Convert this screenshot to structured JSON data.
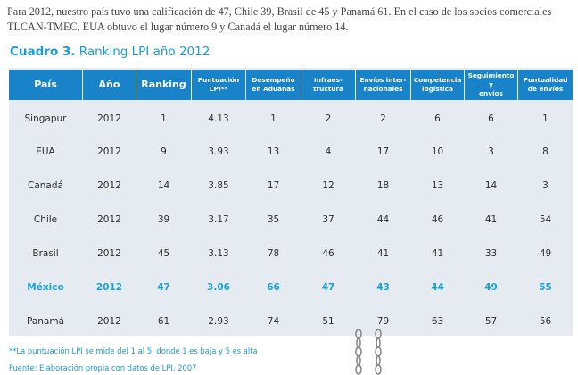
{
  "intro_text": "Para 2012, nuestro país tuvo una calificación de 47, Chile 39, Brasil de 45 y Panamá 61. En el caso de los socios comerciales TLCAN-TMEC, EUA obtuvo el lugar número 9 y Canadá el lugar número 14.",
  "caption": {
    "label": "Cuadro 3.",
    "title": "Ranking LPI año 2012"
  },
  "table": {
    "headers": [
      [
        "País"
      ],
      [
        "Año"
      ],
      [
        "Ranking"
      ],
      [
        "Puntuación",
        "LPI**"
      ],
      [
        "Desempeño",
        "en Aduanas"
      ],
      [
        "Infraes-",
        "tructura"
      ],
      [
        "Envíos inter-",
        "nacionales"
      ],
      [
        "Competencia",
        "logística"
      ],
      [
        "Seguimiento y",
        "envíos"
      ],
      [
        "Puntualidad",
        "de envíos"
      ]
    ],
    "rows": [
      [
        "Singapur",
        "2012",
        "1",
        "4.13",
        "1",
        "2",
        "2",
        "6",
        "6",
        "1"
      ],
      [
        "EUA",
        "2012",
        "9",
        "3.93",
        "13",
        "4",
        "17",
        "10",
        "3",
        "8"
      ],
      [
        "Canadá",
        "2012",
        "14",
        "3.85",
        "17",
        "12",
        "18",
        "13",
        "14",
        "3"
      ],
      [
        "Chile",
        "2012",
        "39",
        "3.17",
        "35",
        "37",
        "44",
        "46",
        "41",
        "54"
      ],
      [
        "Brasil",
        "2012",
        "45",
        "3.13",
        "78",
        "46",
        "41",
        "41",
        "33",
        "49"
      ],
      [
        "México",
        "2012",
        "47",
        "3.06",
        "66",
        "47",
        "43",
        "44",
        "49",
        "55"
      ],
      [
        "Panamá",
        "2012",
        "61",
        "2.93",
        "74",
        "51",
        "79",
        "63",
        "57",
        "56"
      ]
    ],
    "highlight_row": 5
  },
  "footnote": "**La puntuación LPI se mide del 1 al 5, donde 1 es baja y 5 es alta",
  "source": "Fuente: Elaboración propia con datos de LPI, 2007",
  "colors": {
    "header_bg": "#1883c9",
    "row_bg": "#e6ebf2",
    "accent": "#17a2dc",
    "text": "#2d2d2d"
  }
}
